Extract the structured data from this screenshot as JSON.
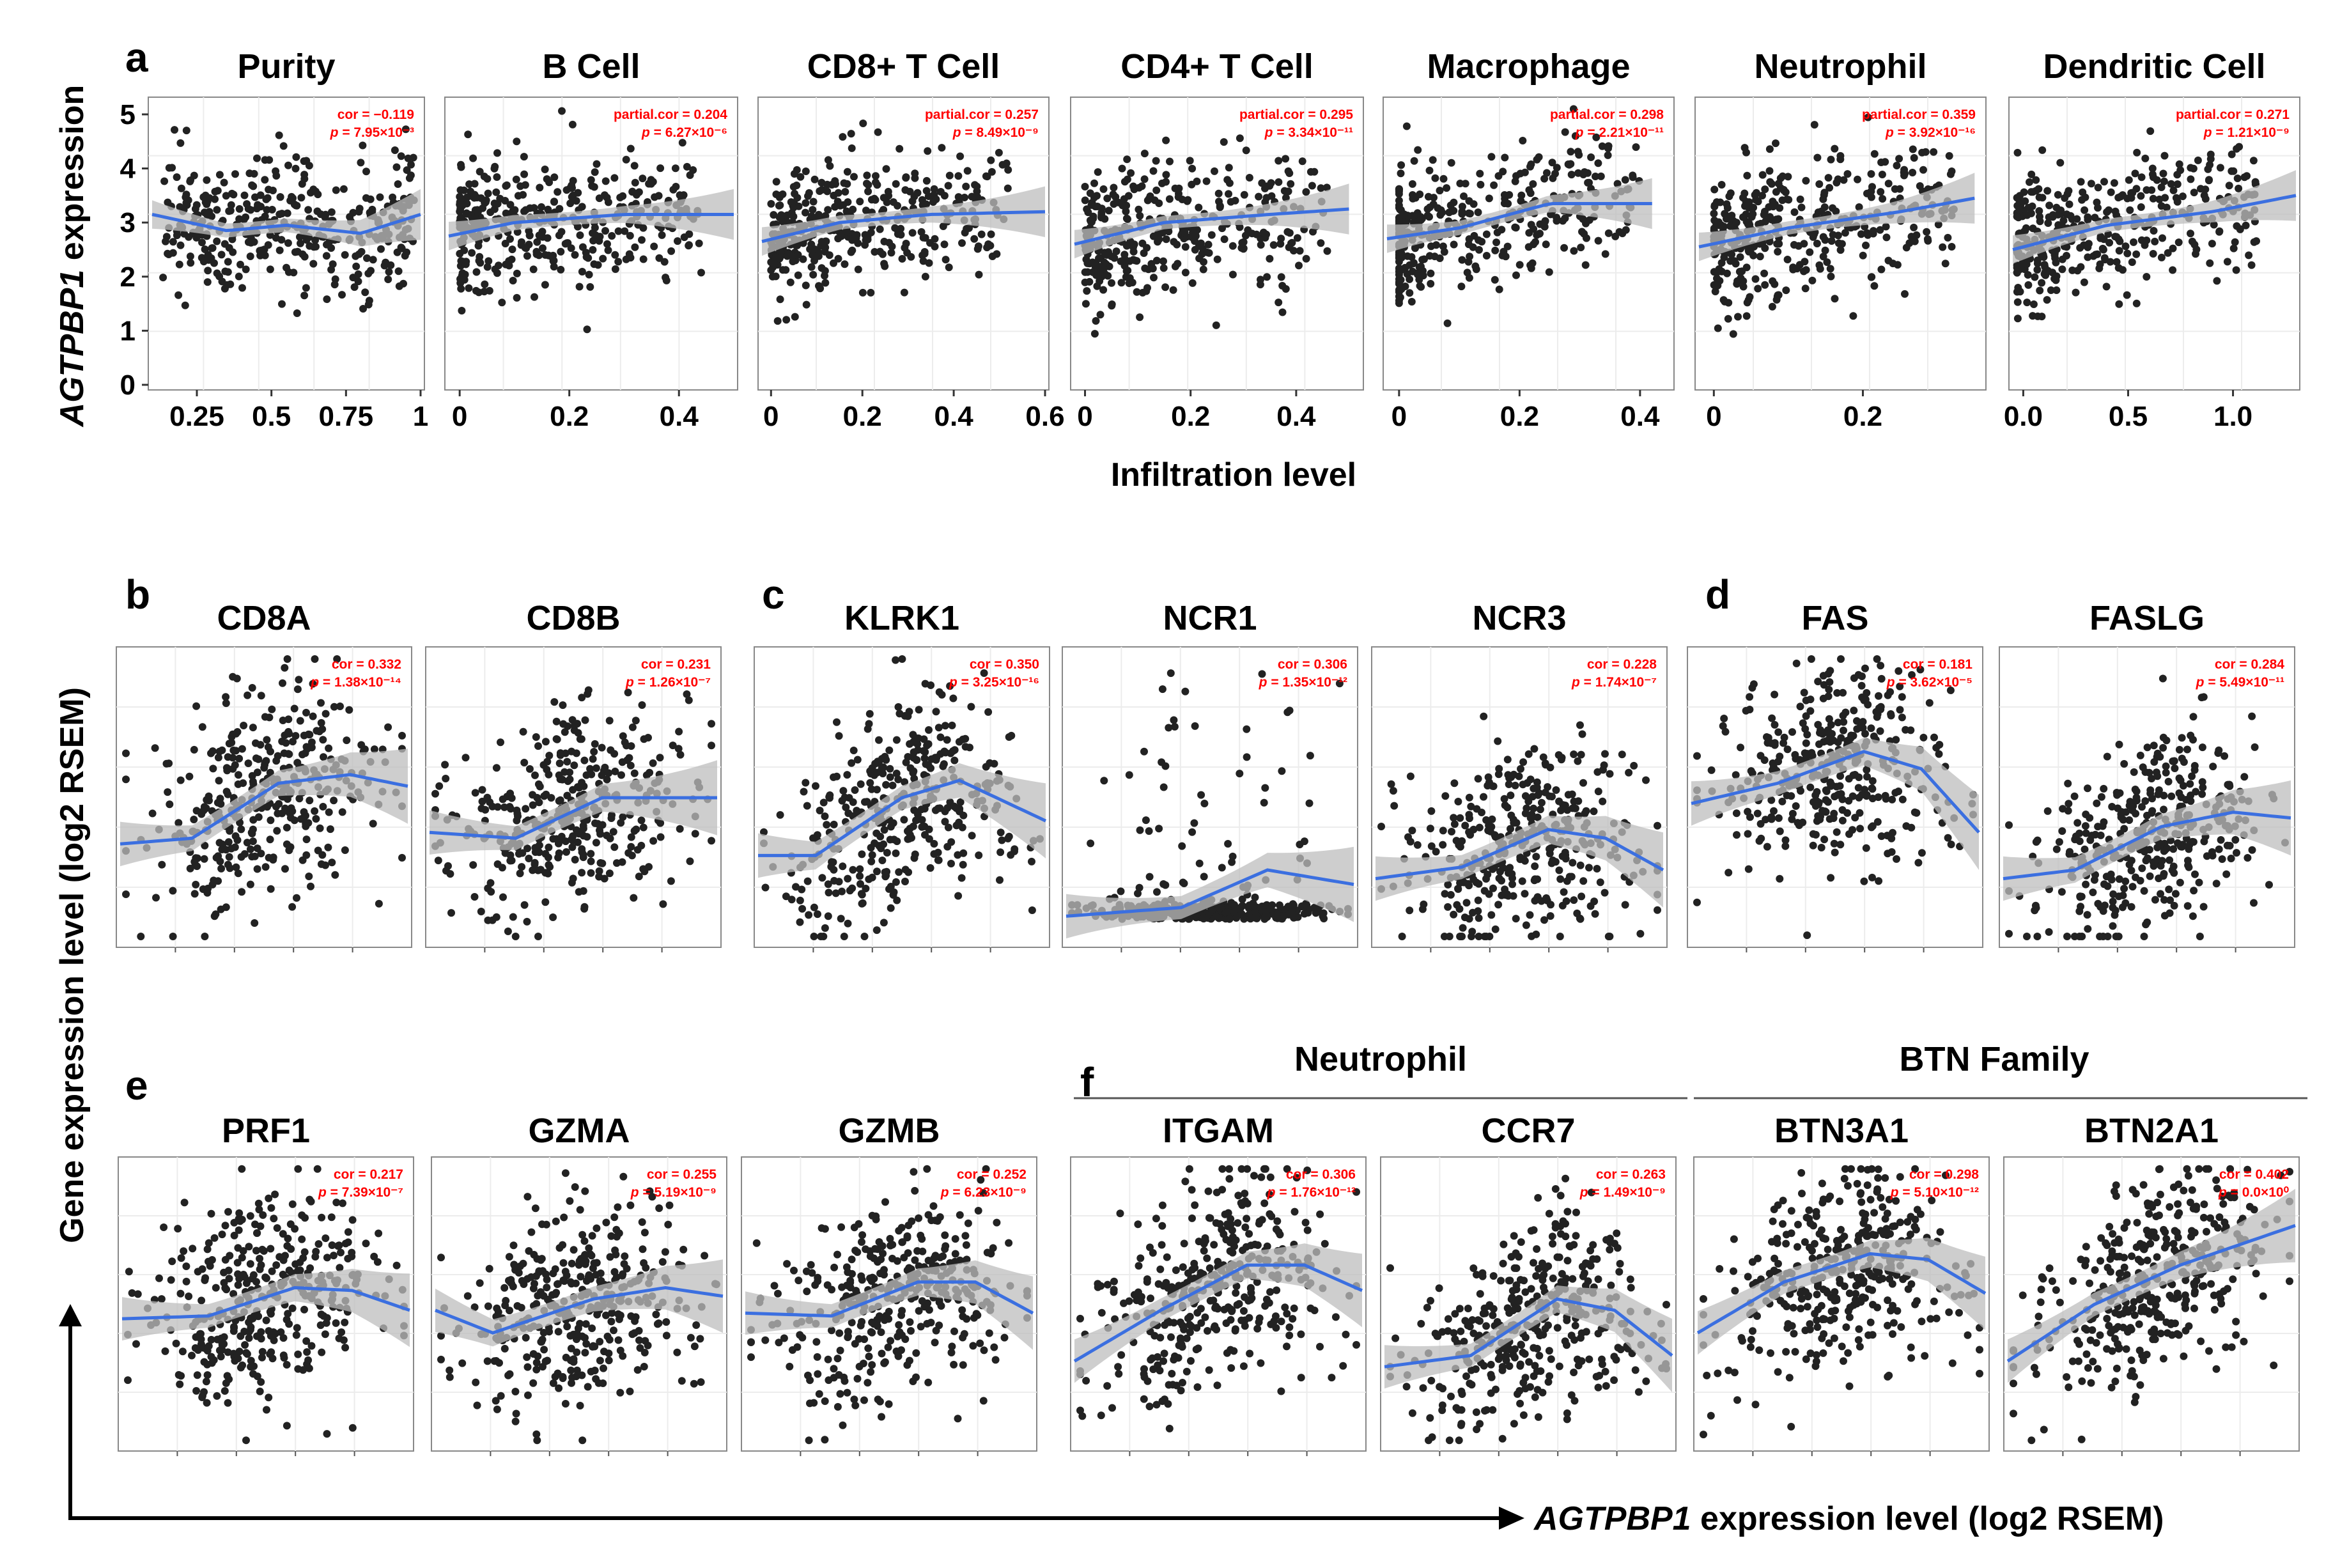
{
  "figure": {
    "y_label_a_gene": "AGTPBP1",
    "y_label_a_rest": " expression",
    "x_label_a": "Infiltration level",
    "left_label": "Gene expression level (log2 RSEM)",
    "bottom_label_gene": "AGTPBP1",
    "bottom_label_rest": " expression level (log2 RSEM)",
    "group_neutrophil": "Neutrophil",
    "group_btn": "BTN Family",
    "letters": {
      "a": "a",
      "b": "b",
      "c": "c",
      "d": "d",
      "e": "e",
      "f": "f"
    }
  },
  "chart_data": [
    {
      "id": "a1",
      "type": "scatter",
      "title": "Purity",
      "stat1_label": "cor = ",
      "stat1": "−0.119",
      "stat2_label": "p",
      "stat2": " = 7.95×10⁻³",
      "xlim": [
        0.1,
        1.0
      ],
      "xticks": [
        0.25,
        0.5,
        0.75,
        1
      ],
      "xticklabels": [
        "0.25",
        "0.5",
        "0.75",
        "1"
      ],
      "ylim": [
        0,
        5.2
      ],
      "yticks": [
        0,
        1,
        2,
        3,
        4,
        5
      ],
      "yticklabels": [
        "0",
        "1",
        "2",
        "3",
        "4",
        "5"
      ],
      "trend": [
        [
          0.1,
          3.15
        ],
        [
          0.35,
          2.85
        ],
        [
          0.55,
          2.95
        ],
        [
          0.8,
          2.8
        ],
        [
          1.0,
          3.15
        ]
      ]
    },
    {
      "id": "a2",
      "type": "scatter",
      "title": "B Cell",
      "stat1_label": "partial.cor = ",
      "stat1": "0.204",
      "stat2_label": "p",
      "stat2": " = 6.27×10⁻⁶",
      "xlim": [
        -0.02,
        0.5
      ],
      "xticks": [
        0,
        0.2,
        0.4
      ],
      "xticklabels": [
        "0",
        "0.2",
        "0.4"
      ],
      "ylim": [
        0,
        5.2
      ],
      "trend": [
        [
          -0.02,
          2.75
        ],
        [
          0.1,
          3.0
        ],
        [
          0.3,
          3.15
        ],
        [
          0.5,
          3.15
        ]
      ]
    },
    {
      "id": "a3",
      "type": "scatter",
      "title": "CD8+ T Cell",
      "stat1_label": "partial.cor = ",
      "stat1": "0.257",
      "stat2_label": "p",
      "stat2": " = 8.49×10⁻⁹",
      "xlim": [
        -0.02,
        0.6
      ],
      "xticks": [
        0,
        0.2,
        0.4,
        0.6
      ],
      "xticklabels": [
        "0",
        "0.2",
        "0.4",
        "0.6"
      ],
      "ylim": [
        0,
        5.2
      ],
      "trend": [
        [
          -0.02,
          2.65
        ],
        [
          0.15,
          3.0
        ],
        [
          0.35,
          3.15
        ],
        [
          0.6,
          3.2
        ]
      ]
    },
    {
      "id": "a4",
      "type": "scatter",
      "title": "CD4+ T Cell",
      "stat1_label": "partial.cor = ",
      "stat1": "0.295",
      "stat2_label": "p",
      "stat2": " = 3.34×10⁻¹¹",
      "xlim": [
        -0.02,
        0.52
      ],
      "xticks": [
        0,
        0.2,
        0.4
      ],
      "xticklabels": [
        "0",
        "0.2",
        "0.4"
      ],
      "ylim": [
        0,
        5.2
      ],
      "trend": [
        [
          -0.02,
          2.6
        ],
        [
          0.15,
          3.0
        ],
        [
          0.35,
          3.15
        ],
        [
          0.5,
          3.25
        ]
      ]
    },
    {
      "id": "a5",
      "type": "scatter",
      "title": "Macrophage",
      "stat1_label": "partial.cor = ",
      "stat1": "0.298",
      "stat2_label": "p",
      "stat2": " = 2.21×10⁻¹¹",
      "xlim": [
        -0.02,
        0.45
      ],
      "xticks": [
        0,
        0.2,
        0.4
      ],
      "xticklabels": [
        "0",
        "0.2",
        "0.4"
      ],
      "ylim": [
        0,
        5.2
      ],
      "trend": [
        [
          -0.02,
          2.7
        ],
        [
          0.1,
          2.9
        ],
        [
          0.25,
          3.35
        ],
        [
          0.42,
          3.35
        ]
      ]
    },
    {
      "id": "a6",
      "type": "scatter",
      "title": "Neutrophil",
      "stat1_label": "partial.cor = ",
      "stat1": "0.359",
      "stat2_label": "p",
      "stat2": " = 3.92×10⁻¹⁶",
      "xlim": [
        -0.02,
        0.36
      ],
      "xticks": [
        0,
        0.2
      ],
      "xticklabels": [
        "0",
        "0.2"
      ],
      "ylim": [
        0,
        5.2
      ],
      "trend": [
        [
          -0.02,
          2.55
        ],
        [
          0.1,
          2.9
        ],
        [
          0.25,
          3.2
        ],
        [
          0.35,
          3.45
        ]
      ]
    },
    {
      "id": "a7",
      "type": "scatter",
      "title": "Dendritic Cell",
      "stat1_label": "partial.cor = ",
      "stat1": "0.271",
      "stat2_label": "p",
      "stat2": " = 1.21×10⁻⁹",
      "xlim": [
        -0.05,
        1.3
      ],
      "xticks": [
        0,
        0.5,
        1.0
      ],
      "xticklabels": [
        "0.0",
        "0.5",
        "1.0"
      ],
      "ylim": [
        0,
        5.2
      ],
      "trend": [
        [
          -0.05,
          2.5
        ],
        [
          0.4,
          2.95
        ],
        [
          0.9,
          3.2
        ],
        [
          1.3,
          3.5
        ]
      ]
    },
    {
      "id": "b1",
      "type": "scatter",
      "title": "CD8A",
      "stat1_label": "cor = ",
      "stat1": "0.332",
      "stat2_label": "p",
      "stat2": " = 1.38×10⁻¹⁴",
      "trend": [
        [
          0.0,
          0.34
        ],
        [
          0.25,
          0.36
        ],
        [
          0.55,
          0.55
        ],
        [
          0.8,
          0.58
        ],
        [
          1.0,
          0.54
        ]
      ]
    },
    {
      "id": "b2",
      "type": "scatter",
      "title": "CD8B",
      "stat1_label": "cor = ",
      "stat1": "0.231",
      "stat2_label": "p",
      "stat2": " = 1.26×10⁻⁷",
      "trend": [
        [
          0.0,
          0.38
        ],
        [
          0.3,
          0.36
        ],
        [
          0.6,
          0.5
        ],
        [
          1.0,
          0.5
        ]
      ]
    },
    {
      "id": "c1",
      "type": "scatter",
      "title": "KLRK1",
      "stat1_label": "cor = ",
      "stat1": "0.350",
      "stat2_label": "p",
      "stat2": " = 3.25×10⁻¹⁶",
      "trend": [
        [
          0.0,
          0.3
        ],
        [
          0.2,
          0.3
        ],
        [
          0.5,
          0.5
        ],
        [
          0.7,
          0.56
        ],
        [
          1.0,
          0.42
        ]
      ]
    },
    {
      "id": "c2",
      "type": "scatter",
      "title": "NCR1",
      "stat1_label": "cor = ",
      "stat1": "0.306",
      "stat2_label": "p",
      "stat2": " = 1.35×10⁻¹²",
      "trend": [
        [
          0.0,
          0.09
        ],
        [
          0.4,
          0.12
        ],
        [
          0.7,
          0.25
        ],
        [
          1.0,
          0.2
        ]
      ]
    },
    {
      "id": "c3",
      "type": "scatter",
      "title": "NCR3",
      "stat1_label": "cor = ",
      "stat1": "0.228",
      "stat2_label": "p",
      "stat2": " = 1.74×10⁻⁷",
      "trend": [
        [
          0.0,
          0.22
        ],
        [
          0.3,
          0.26
        ],
        [
          0.6,
          0.39
        ],
        [
          0.8,
          0.36
        ],
        [
          1.0,
          0.25
        ]
      ]
    },
    {
      "id": "d1",
      "type": "scatter",
      "title": "FAS",
      "stat1_label": "cor = ",
      "stat1": "0.181",
      "stat2_label": "p",
      "stat2": " = 3.62×10⁻⁵",
      "trend": [
        [
          0.0,
          0.48
        ],
        [
          0.3,
          0.55
        ],
        [
          0.6,
          0.66
        ],
        [
          0.8,
          0.6
        ],
        [
          1.0,
          0.38
        ]
      ]
    },
    {
      "id": "d2",
      "type": "scatter",
      "title": "FASLG",
      "stat1_label": "cor = ",
      "stat1": "0.284",
      "stat2_label": "p",
      "stat2": " = 5.49×10⁻¹¹",
      "trend": [
        [
          0.0,
          0.22
        ],
        [
          0.25,
          0.25
        ],
        [
          0.55,
          0.4
        ],
        [
          0.8,
          0.45
        ],
        [
          1.0,
          0.43
        ]
      ]
    },
    {
      "id": "e1",
      "type": "scatter",
      "title": "PRF1",
      "stat1_label": "cor = ",
      "stat1": "0.217",
      "stat2_label": "p",
      "stat2": " = 7.39×10⁻⁷",
      "trend": [
        [
          0.0,
          0.45
        ],
        [
          0.3,
          0.46
        ],
        [
          0.6,
          0.56
        ],
        [
          0.8,
          0.55
        ],
        [
          1.0,
          0.48
        ]
      ]
    },
    {
      "id": "e2",
      "type": "scatter",
      "title": "GZMA",
      "stat1_label": "cor = ",
      "stat1": "0.255",
      "stat2_label": "p",
      "stat2": " = 5.19×10⁻⁹",
      "trend": [
        [
          0.0,
          0.48
        ],
        [
          0.2,
          0.4
        ],
        [
          0.55,
          0.52
        ],
        [
          0.8,
          0.56
        ],
        [
          1.0,
          0.53
        ]
      ]
    },
    {
      "id": "e3",
      "type": "scatter",
      "title": "GZMB",
      "stat1_label": "cor = ",
      "stat1": "0.252",
      "stat2_label": "p",
      "stat2": " = 6.23×10⁻⁹",
      "trend": [
        [
          0.0,
          0.47
        ],
        [
          0.3,
          0.46
        ],
        [
          0.6,
          0.58
        ],
        [
          0.8,
          0.58
        ],
        [
          1.0,
          0.47
        ]
      ]
    },
    {
      "id": "f1",
      "type": "scatter",
      "title": "ITGAM",
      "stat1_label": "cor = ",
      "stat1": "0.306",
      "stat2_label": "p",
      "stat2": " = 1.76×10⁻¹²",
      "trend": [
        [
          0.0,
          0.3
        ],
        [
          0.3,
          0.48
        ],
        [
          0.6,
          0.64
        ],
        [
          0.8,
          0.64
        ],
        [
          1.0,
          0.55
        ]
      ]
    },
    {
      "id": "f2",
      "type": "scatter",
      "title": "CCR7",
      "stat1_label": "cor = ",
      "stat1": "0.263",
      "stat2_label": "p",
      "stat2": " = 1.49×10⁻⁹",
      "trend": [
        [
          0.0,
          0.28
        ],
        [
          0.3,
          0.32
        ],
        [
          0.6,
          0.52
        ],
        [
          0.8,
          0.48
        ],
        [
          1.0,
          0.32
        ]
      ]
    },
    {
      "id": "f3",
      "type": "scatter",
      "title": "BTN3A1",
      "stat1_label": "cor = ",
      "stat1": "0.298",
      "stat2_label": "p",
      "stat2": " = 5.10×10⁻¹²",
      "trend": [
        [
          0.0,
          0.4
        ],
        [
          0.3,
          0.58
        ],
        [
          0.6,
          0.68
        ],
        [
          0.8,
          0.66
        ],
        [
          1.0,
          0.54
        ]
      ]
    },
    {
      "id": "f4",
      "type": "scatter",
      "title": "BTN2A1",
      "stat1_label": "cor = ",
      "stat1": "0.402",
      "stat2_label": "p",
      "stat2": " = 0.0×10⁰",
      "trend": [
        [
          0.0,
          0.3
        ],
        [
          0.3,
          0.5
        ],
        [
          0.6,
          0.64
        ],
        [
          1.0,
          0.78
        ]
      ]
    }
  ]
}
